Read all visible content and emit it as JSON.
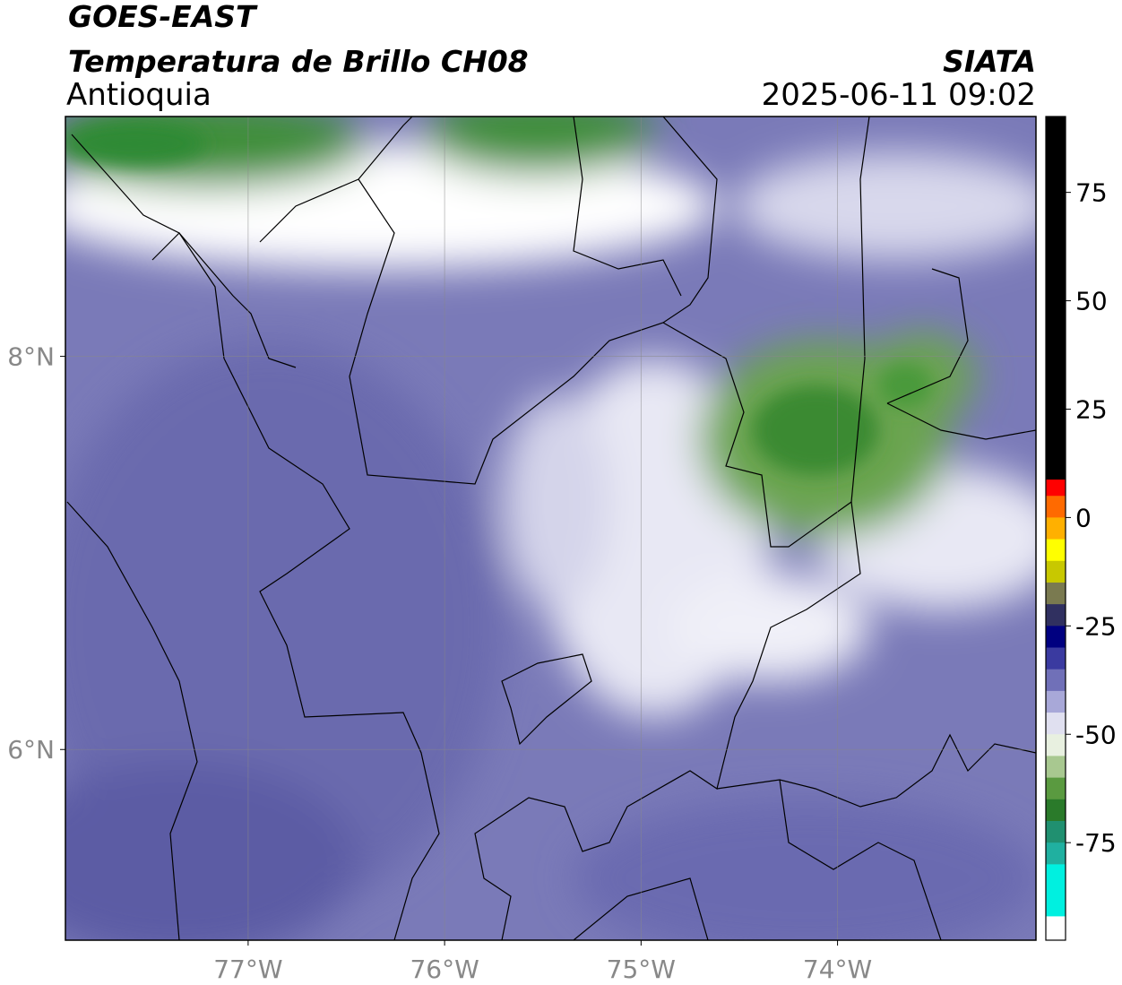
{
  "header": {
    "title": "GOES-EAST",
    "subtitle": "Temperatura de Brillo CH08",
    "region": "Antioquia",
    "source": "SIATA",
    "datetime": "2025-06-11 09:02"
  },
  "map": {
    "xlim": [
      -77.93,
      -72.99
    ],
    "ylim": [
      5.03,
      9.22
    ],
    "xticks": [
      {
        "value": -77,
        "label": "77°W"
      },
      {
        "value": -76,
        "label": "76°W"
      },
      {
        "value": -75,
        "label": "75°W"
      },
      {
        "value": -74,
        "label": "74°W"
      }
    ],
    "yticks": [
      {
        "value": 8,
        "label": "8°N"
      },
      {
        "value": 6,
        "label": "6°N"
      }
    ],
    "grid": true,
    "colorbar": {
      "lim": [
        -97.5,
        92.5
      ],
      "ticks": [
        75,
        50,
        25,
        0,
        -25,
        -50,
        -75
      ],
      "segments": [
        {
          "range": [
            92.5,
            8.75
          ],
          "color": "#000000"
        },
        {
          "range": [
            8.75,
            5
          ],
          "color": "#ff0000"
        },
        {
          "range": [
            5,
            0
          ],
          "color": "#ff6a00"
        },
        {
          "range": [
            0,
            -5
          ],
          "color": "#ffb000"
        },
        {
          "range": [
            -5,
            -10
          ],
          "color": "#ffff00"
        },
        {
          "range": [
            -10,
            -15
          ],
          "color": "#c8c800"
        },
        {
          "range": [
            -15,
            -20
          ],
          "color": "#7a7a50"
        },
        {
          "range": [
            -20,
            -25
          ],
          "color": "#303060"
        },
        {
          "range": [
            -25,
            -30
          ],
          "color": "#000080"
        },
        {
          "range": [
            -30,
            -35
          ],
          "color": "#3a3aa0"
        },
        {
          "range": [
            -35,
            -40
          ],
          "color": "#7070b8"
        },
        {
          "range": [
            -40,
            -45
          ],
          "color": "#a8a8d8"
        },
        {
          "range": [
            -45,
            -50
          ],
          "color": "#e0e0f0"
        },
        {
          "range": [
            -50,
            -55
          ],
          "color": "#e8f0e0"
        },
        {
          "range": [
            -55,
            -60
          ],
          "color": "#a8c890"
        },
        {
          "range": [
            -60,
            -65
          ],
          "color": "#5a9a40"
        },
        {
          "range": [
            -65,
            -70
          ],
          "color": "#2a7a2a"
        },
        {
          "range": [
            -70,
            -75
          ],
          "color": "#209070"
        },
        {
          "range": [
            -75,
            -80
          ],
          "color": "#20b0a0"
        },
        {
          "range": [
            -80,
            -92
          ],
          "color": "#00f0e0"
        },
        {
          "range": [
            -92,
            -97.5
          ],
          "color": "#ffffff"
        }
      ]
    }
  }
}
